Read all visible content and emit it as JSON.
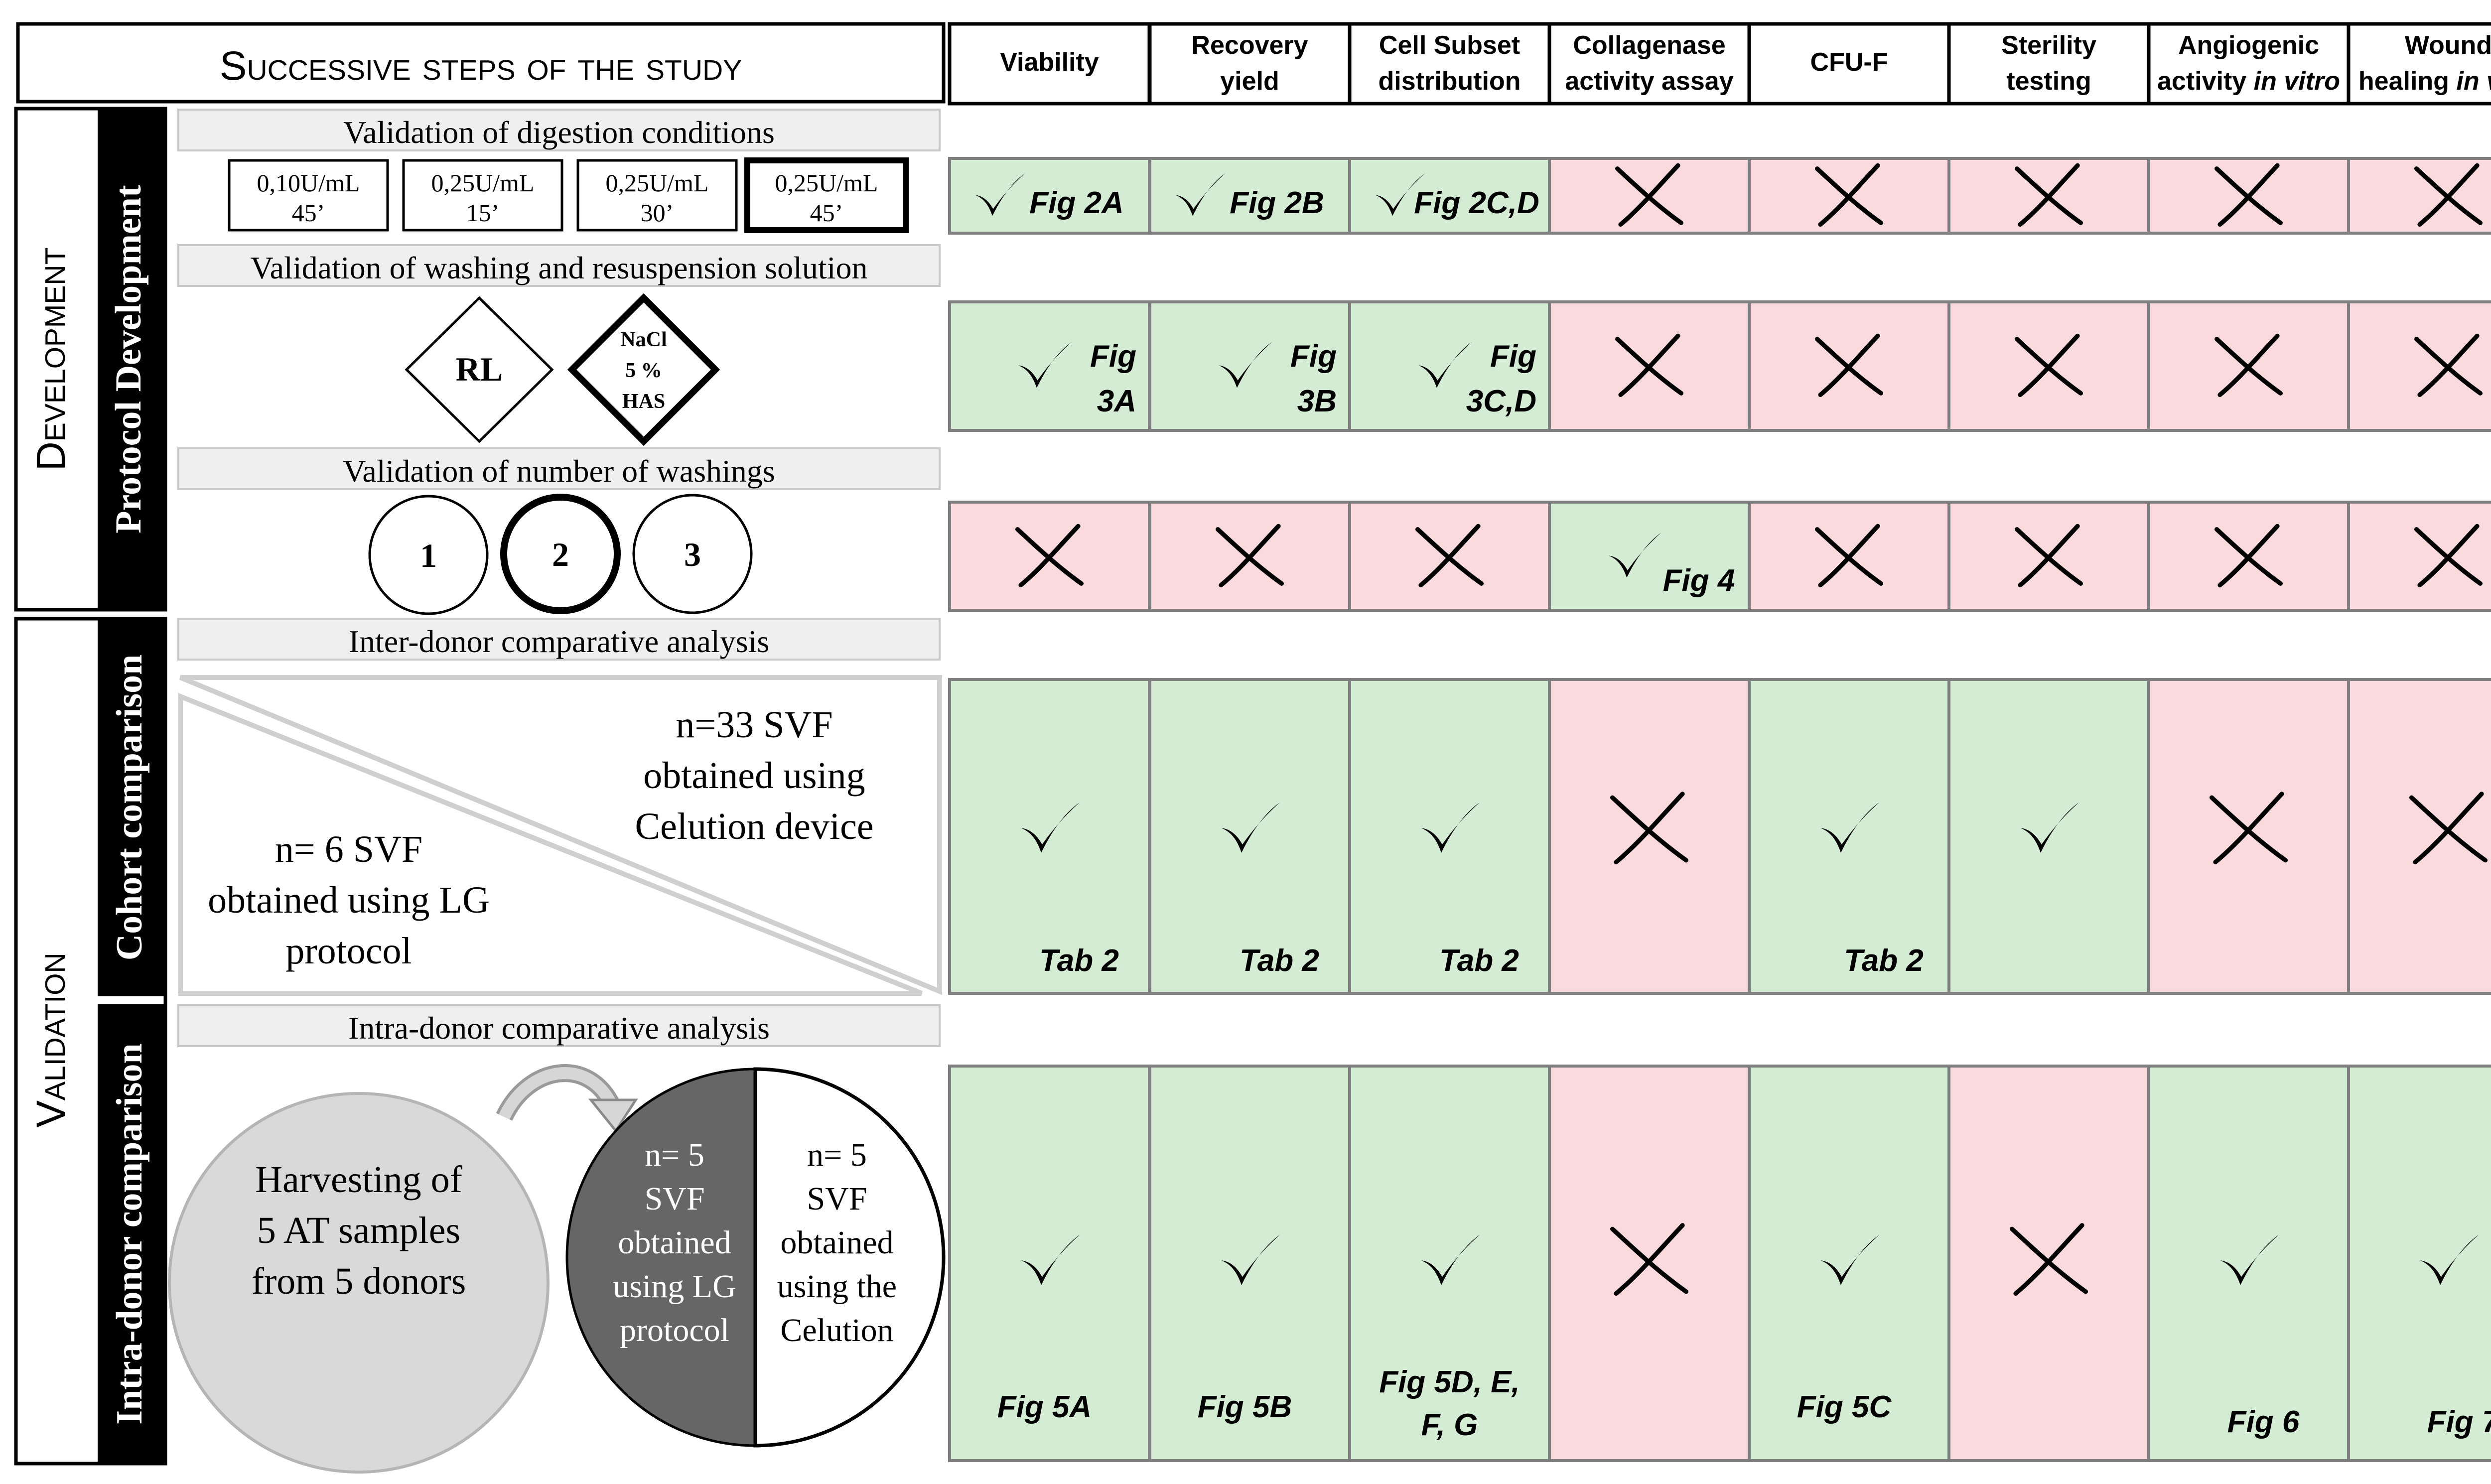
{
  "header": {
    "study_title": "Successive steps of the study",
    "columns": [
      {
        "l1": "Viability",
        "l2": "",
        "l2i": ""
      },
      {
        "l1": "Recovery",
        "l2": "yield",
        "l2i": ""
      },
      {
        "l1": "Cell Subset",
        "l2": "distribution",
        "l2i": ""
      },
      {
        "l1": "Collagenase",
        "l2": "activity assay",
        "l2i": ""
      },
      {
        "l1": "CFU-F",
        "l2": "",
        "l2i": ""
      },
      {
        "l1": "Sterility",
        "l2": "testing",
        "l2i": ""
      },
      {
        "l1": "Angiogenic",
        "l2": "activity ",
        "l2i": "in vitro"
      },
      {
        "l1": "Wound",
        "l2": "healing ",
        "l2i": "in vivo"
      }
    ]
  },
  "phases": {
    "development": "Development",
    "validation": "Validation",
    "protocol_development": "Protocol Development",
    "cohort_comparison": "Cohort comparison",
    "intra_donor_comparison": "Intra-donor comparison"
  },
  "steps": {
    "digestion": {
      "title": "Validation of digestion conditions",
      "conditions": [
        {
          "dose": "0,10U/mL",
          "time": "45’"
        },
        {
          "dose": "0,25U/mL",
          "time": "15’"
        },
        {
          "dose": "0,25U/mL",
          "time": "30’"
        },
        {
          "dose": "0,25U/mL",
          "time": "45’"
        }
      ]
    },
    "washing": {
      "title": "Validation of washing and resuspension solution",
      "rl": "RL",
      "nacl": [
        "NaCl",
        "5 %",
        "HAS"
      ]
    },
    "number_washings": {
      "title": "Validation of number of washings",
      "options": [
        "1",
        "2",
        "3"
      ]
    },
    "inter_donor": {
      "title": "Inter-donor comparative analysis",
      "celution": [
        "n=33 SVF",
        "obtained using",
        "Celution device"
      ],
      "lg": [
        "n= 6 SVF",
        "obtained using LG",
        "protocol"
      ]
    },
    "intra_donor": {
      "title": "Intra-donor comparative analysis",
      "harvest": [
        "Harvesting of",
        "5 AT samples",
        "from 5 donors"
      ],
      "lg_half": [
        "n= 5",
        "SVF",
        "obtained",
        "using LG",
        "protocol"
      ],
      "celution_half": [
        "n= 5",
        "SVF",
        "obtained",
        "using the",
        "Celution"
      ]
    }
  },
  "results": {
    "colors": {
      "yes": "#d4ecd4",
      "no": "#fadadd",
      "border": "#7f7f7f"
    },
    "rows": [
      [
        {
          "status": "yes",
          "ref": [
            "Fig 2A"
          ]
        },
        {
          "status": "yes",
          "ref": [
            "Fig 2B"
          ]
        },
        {
          "status": "yes",
          "ref": [
            "Fig 2C,D"
          ]
        },
        {
          "status": "no",
          "ref": []
        },
        {
          "status": "no",
          "ref": []
        },
        {
          "status": "no",
          "ref": []
        },
        {
          "status": "no",
          "ref": []
        },
        {
          "status": "no",
          "ref": []
        }
      ],
      [
        {
          "status": "yes",
          "ref": [
            "Fig",
            "3A"
          ]
        },
        {
          "status": "yes",
          "ref": [
            "Fig",
            "3B"
          ]
        },
        {
          "status": "yes",
          "ref": [
            "Fig",
            "3C,D"
          ]
        },
        {
          "status": "no",
          "ref": []
        },
        {
          "status": "no",
          "ref": []
        },
        {
          "status": "no",
          "ref": []
        },
        {
          "status": "no",
          "ref": []
        },
        {
          "status": "no",
          "ref": []
        }
      ],
      [
        {
          "status": "no",
          "ref": []
        },
        {
          "status": "no",
          "ref": []
        },
        {
          "status": "no",
          "ref": []
        },
        {
          "status": "yes",
          "ref": [
            "Fig 4"
          ]
        },
        {
          "status": "no",
          "ref": []
        },
        {
          "status": "no",
          "ref": []
        },
        {
          "status": "no",
          "ref": []
        },
        {
          "status": "no",
          "ref": []
        }
      ],
      [
        {
          "status": "yes",
          "ref": [
            "Tab 2"
          ]
        },
        {
          "status": "yes",
          "ref": [
            "Tab 2"
          ]
        },
        {
          "status": "yes",
          "ref": [
            "Tab 2"
          ]
        },
        {
          "status": "no",
          "ref": []
        },
        {
          "status": "yes",
          "ref": [
            "Tab 2"
          ]
        },
        {
          "status": "yes",
          "ref": []
        },
        {
          "status": "no",
          "ref": []
        },
        {
          "status": "no",
          "ref": []
        }
      ],
      [
        {
          "status": "yes",
          "ref": [
            "Fig 5A"
          ]
        },
        {
          "status": "yes",
          "ref": [
            "Fig 5B"
          ]
        },
        {
          "status": "yes",
          "ref": [
            "Fig 5D, E,",
            "F, G"
          ]
        },
        {
          "status": "no",
          "ref": []
        },
        {
          "status": "yes",
          "ref": [
            "Fig 5C"
          ]
        },
        {
          "status": "no",
          "ref": []
        },
        {
          "status": "yes",
          "ref": [
            "Fig 6"
          ]
        },
        {
          "status": "yes",
          "ref": [
            "Fig 7"
          ]
        }
      ]
    ]
  }
}
